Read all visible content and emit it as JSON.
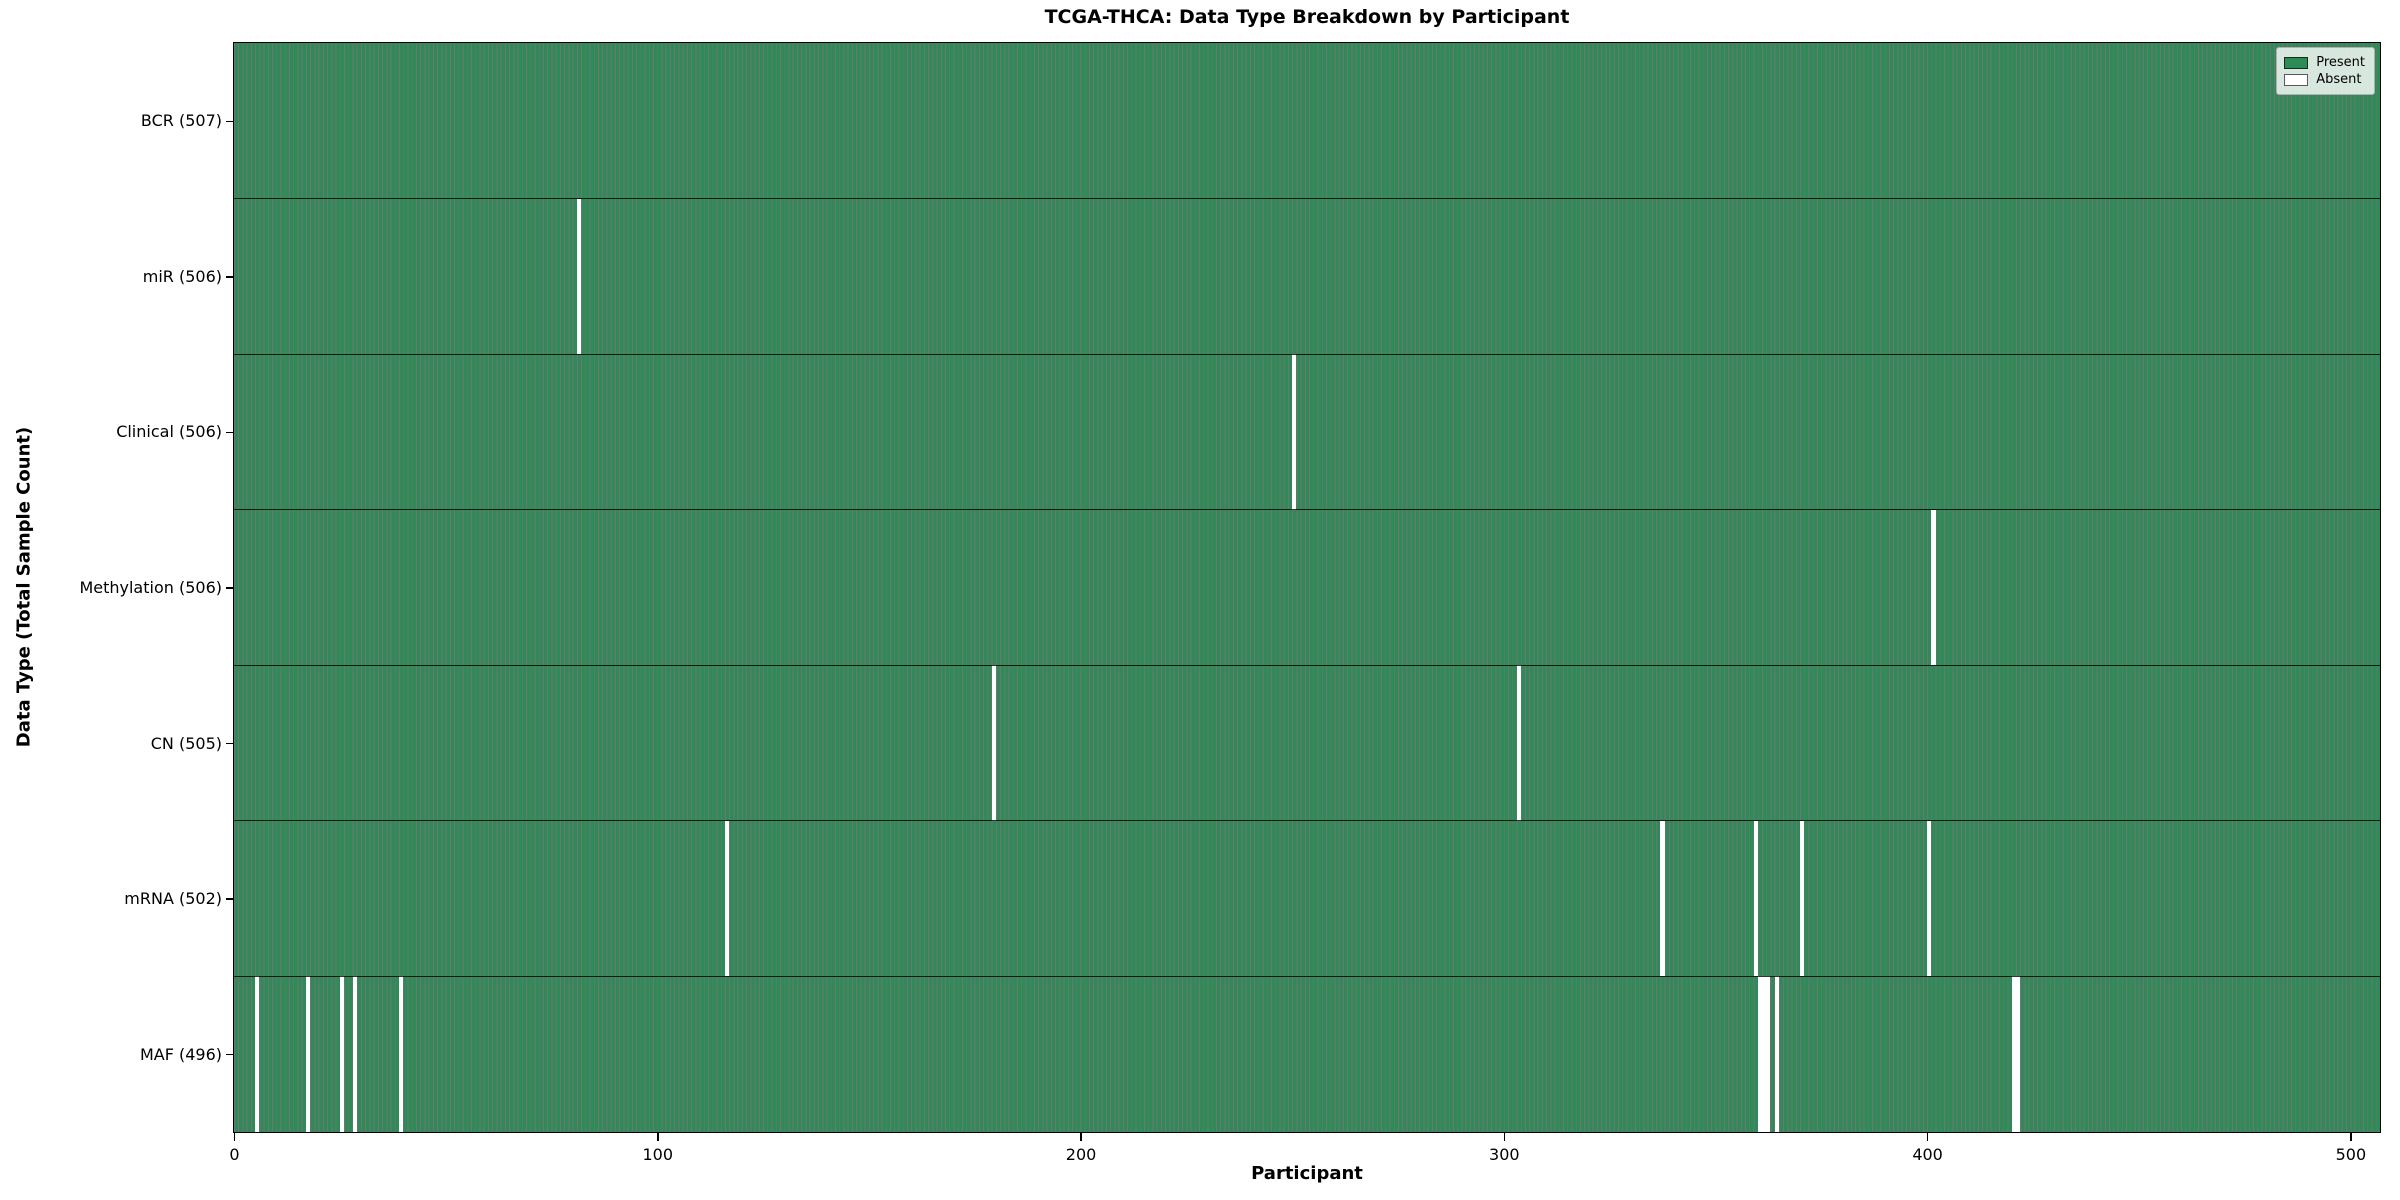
{
  "chart_data": {
    "type": "heatmap",
    "title": "TCGA-THCA: Data Type Breakdown by Participant",
    "xlabel": "Participant",
    "ylabel": "Data Type (Total Sample Count)",
    "x_ticks": [
      0,
      100,
      200,
      300,
      400,
      500
    ],
    "x_range": [
      0,
      507
    ],
    "total_participants": 507,
    "grid": false,
    "legend": {
      "position": "upper-right",
      "entries": [
        {
          "label": "Present",
          "color": "#2E8B57"
        },
        {
          "label": "Absent",
          "color": "#FFFFFF"
        }
      ]
    },
    "colors": {
      "present_fill": "#2E8B57",
      "bar_edge": "rgba(0,0,0,0.55)",
      "absent_fill": "#FFFFFF",
      "row_divider": "rgba(0,0,0,0.8)"
    },
    "rows": [
      {
        "label": "BCR",
        "tick_label": "BCR (507)",
        "present_count": 507,
        "absent_participants": []
      },
      {
        "label": "miR",
        "tick_label": "miR (506)",
        "present_count": 506,
        "absent_participants": [
          81
        ]
      },
      {
        "label": "Clinical",
        "tick_label": "Clinical (506)",
        "present_count": 506,
        "absent_participants": [
          250
        ]
      },
      {
        "label": "Methylation",
        "tick_label": "Methylation (506)",
        "present_count": 506,
        "absent_participants": [
          401
        ]
      },
      {
        "label": "CN",
        "tick_label": "CN (505)",
        "present_count": 505,
        "absent_participants": [
          179,
          303
        ]
      },
      {
        "label": "mRNA",
        "tick_label": "mRNA (502)",
        "present_count": 502,
        "absent_participants": [
          116,
          337,
          359,
          370,
          400
        ]
      },
      {
        "label": "MAF",
        "tick_label": "MAF (496)",
        "present_count": 496,
        "absent_participants": [
          5,
          17,
          25,
          28,
          39,
          360,
          361,
          362,
          364,
          420,
          421
        ]
      }
    ]
  }
}
